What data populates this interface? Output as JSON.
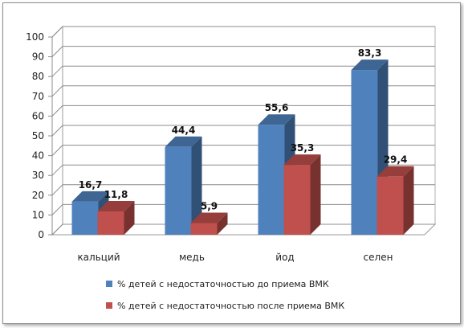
{
  "chart_data": {
    "type": "bar",
    "categories": [
      "кальций",
      "медь",
      "йод",
      "селен"
    ],
    "series": [
      {
        "name": "% детей с недостаточностью до приема ВМК",
        "values": [
          16.7,
          44.4,
          55.6,
          83.3
        ],
        "labels": [
          "16,7",
          "44,4",
          "55,6",
          "83,3"
        ],
        "color": "#4f81bd"
      },
      {
        "name": "% детей с недостаточностью после приема ВМК",
        "values": [
          11.8,
          5.9,
          35.3,
          29.4
        ],
        "labels": [
          "11,8",
          "5,9",
          "35,3",
          "29,4"
        ],
        "color": "#c0504d"
      }
    ],
    "ylim": [
      0,
      100
    ],
    "yticks": [
      0,
      10,
      20,
      30,
      40,
      50,
      60,
      70,
      80,
      90,
      100
    ],
    "grid": true,
    "legend_position": "bottom",
    "style": "3d-clustered-column"
  }
}
